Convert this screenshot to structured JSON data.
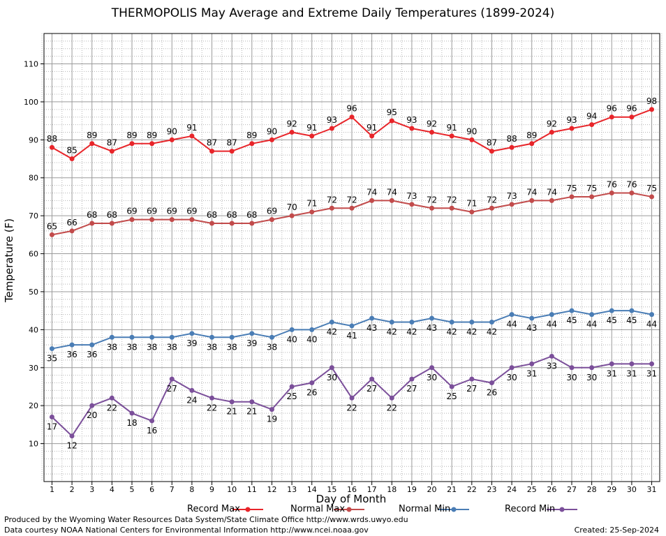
{
  "chart_data": {
    "type": "line",
    "title": "THERMOPOLIS May Average and Extreme Daily Temperatures (1899-2024)",
    "xlabel": "Day of Month",
    "ylabel": "Temperature (F)",
    "xlim": [
      0.6,
      31.4
    ],
    "ylim": [
      0,
      118
    ],
    "yticks": [
      10,
      20,
      30,
      40,
      50,
      60,
      70,
      80,
      90,
      100,
      110
    ],
    "x": [
      1,
      2,
      3,
      4,
      5,
      6,
      7,
      8,
      9,
      10,
      11,
      12,
      13,
      14,
      15,
      16,
      17,
      18,
      19,
      20,
      21,
      22,
      23,
      24,
      25,
      26,
      27,
      28,
      29,
      30,
      31
    ],
    "grid": true,
    "legend_position": "bottom",
    "series": [
      {
        "name": "Record Max",
        "color": "#e8252a",
        "label_position": "above",
        "values": [
          88,
          85,
          89,
          87,
          89,
          89,
          90,
          91,
          87,
          87,
          89,
          90,
          92,
          91,
          93,
          96,
          91,
          95,
          93,
          92,
          91,
          90,
          87,
          88,
          89,
          92,
          93,
          94,
          96,
          96,
          98
        ]
      },
      {
        "name": "Normal Max",
        "color": "#c24b4b",
        "label_position": "above",
        "values": [
          65,
          66,
          68,
          68,
          69,
          69,
          69,
          69,
          68,
          68,
          68,
          69,
          70,
          71,
          72,
          72,
          74,
          74,
          73,
          72,
          72,
          71,
          72,
          73,
          74,
          74,
          75,
          75,
          76,
          76,
          75
        ]
      },
      {
        "name": "Normal Min",
        "color": "#4a7db5",
        "label_position": "below",
        "values": [
          35,
          36,
          36,
          38,
          38,
          38,
          38,
          39,
          38,
          38,
          39,
          38,
          40,
          40,
          42,
          41,
          43,
          42,
          42,
          43,
          42,
          42,
          42,
          44,
          43,
          44,
          45,
          44,
          45,
          45,
          44
        ]
      },
      {
        "name": "Record Min",
        "color": "#7b4f9a",
        "label_position": "below",
        "values": [
          17,
          12,
          20,
          22,
          18,
          16,
          27,
          24,
          22,
          21,
          21,
          19,
          25,
          26,
          30,
          22,
          27,
          22,
          27,
          30,
          25,
          27,
          26,
          30,
          31,
          33,
          30,
          30,
          31,
          31,
          31
        ]
      }
    ]
  },
  "footer": {
    "credit_line_1": "Produced by the Wyoming Water Resources Data System/State Climate Office http://www.wrds.uwyo.edu",
    "credit_line_2": "Data courtesy NOAA National Centers for Environmental Information http://www.ncei.noaa.gov",
    "created": "Created:  25-Sep-2024"
  }
}
